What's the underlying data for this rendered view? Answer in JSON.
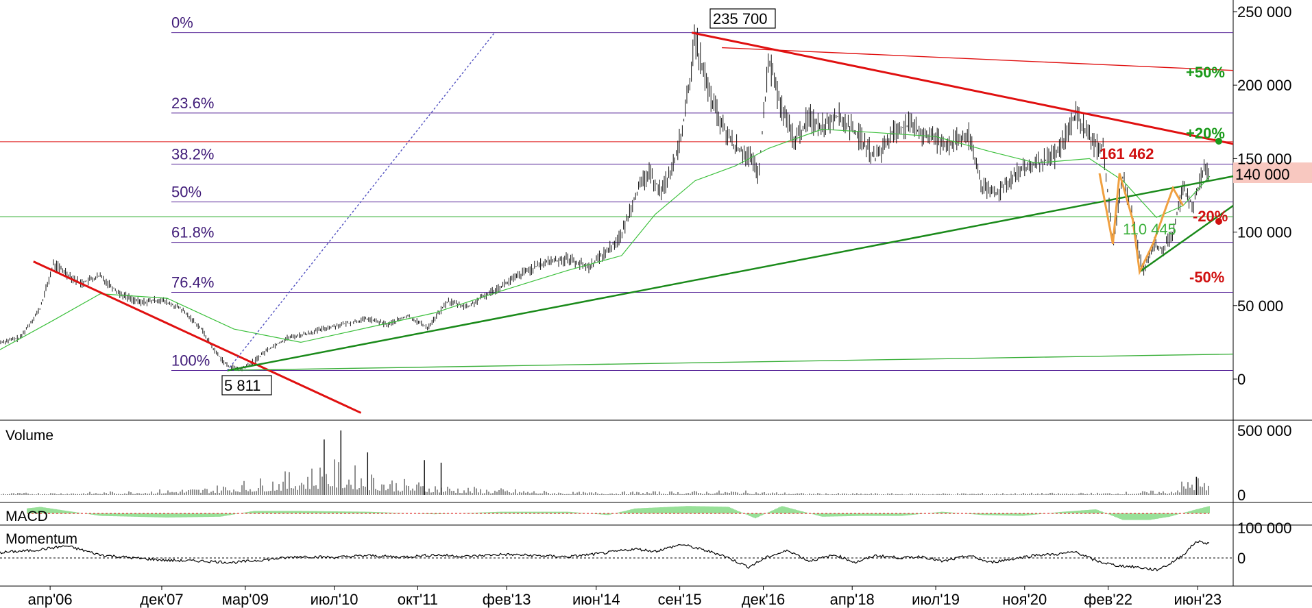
{
  "chart_data": [
    {
      "type": "line",
      "panel": "price",
      "y_ticks": [
        "250 000",
        "200 000",
        "150 000",
        "100 000",
        "50 000",
        "0"
      ],
      "y_tick_values": [
        250000,
        200000,
        150000,
        100000,
        50000,
        0
      ],
      "ylim": [
        -30000,
        255000
      ],
      "x_ticks": [
        "апр'06",
        "дек'07",
        "мар'09",
        "июл'10",
        "окт'11",
        "фев'13",
        "июн'14",
        "сен'15",
        "дек'16",
        "апр'18",
        "июл'19",
        "ноя'20",
        "фев'22",
        "июн'23"
      ],
      "x_tick_values": [
        2006.25,
        2007.92,
        2009.17,
        2010.5,
        2011.75,
        2013.08,
        2014.42,
        2015.67,
        2016.92,
        2018.25,
        2019.5,
        2020.83,
        2022.08,
        2023.42
      ],
      "xlim": [
        2005.5,
        2024.0
      ],
      "fib_levels": [
        {
          "label": "0%",
          "value": 235700
        },
        {
          "label": "23.6%",
          "value": 181000
        },
        {
          "label": "38.2%",
          "value": 146300
        },
        {
          "label": "50%",
          "value": 120500
        },
        {
          "label": "61.8%",
          "value": 93000
        },
        {
          "label": "76.4%",
          "value": 59000
        },
        {
          "label": "100%",
          "value": 5811
        }
      ],
      "horizontal_lines": [
        {
          "value": 161462,
          "color": "#e23030"
        },
        {
          "value": 110445,
          "color": "#3cb03c"
        }
      ],
      "annotations": {
        "high": "235 700",
        "low": "5 811",
        "level_161": "161 462",
        "level_110": "110 445",
        "current": "140 000",
        "plus50": "+50%",
        "plus20": "+20%",
        "minus20": "-20%",
        "minus50": "-50%"
      },
      "price_series": {
        "name": "",
        "x": [
          2005.5,
          2005.8,
          2006.1,
          2006.3,
          2006.5,
          2006.7,
          2007.0,
          2007.3,
          2007.6,
          2007.9,
          2008.2,
          2008.5,
          2008.7,
          2008.9,
          2009.1,
          2009.3,
          2009.5,
          2009.8,
          2010.1,
          2010.4,
          2010.7,
          2011.0,
          2011.3,
          2011.6,
          2011.9,
          2012.2,
          2012.5,
          2012.8,
          2013.1,
          2013.4,
          2013.7,
          2014.0,
          2014.3,
          2014.6,
          2014.8,
          2015.0,
          2015.2,
          2015.4,
          2015.6,
          2015.75,
          2015.9,
          2016.1,
          2016.3,
          2016.5,
          2016.7,
          2016.85,
          2017.0,
          2017.2,
          2017.4,
          2017.6,
          2017.8,
          2018.0,
          2018.3,
          2018.6,
          2018.9,
          2019.1,
          2019.4,
          2019.7,
          2020.0,
          2020.2,
          2020.4,
          2020.7,
          2021.0,
          2021.3,
          2021.6,
          2021.9,
          2022.0,
          2022.15,
          2022.3,
          2022.45,
          2022.6,
          2022.75,
          2022.9,
          2023.05,
          2023.2,
          2023.35,
          2023.5,
          2023.6
        ],
        "values": [
          25000,
          28000,
          48000,
          78000,
          72000,
          65000,
          70000,
          58000,
          52000,
          54000,
          48000,
          35000,
          20000,
          9000,
          6500,
          12000,
          20000,
          28000,
          31000,
          35000,
          38000,
          41000,
          37000,
          43000,
          35000,
          53000,
          49000,
          58000,
          66000,
          74000,
          80000,
          82000,
          76000,
          88000,
          98000,
          125000,
          140000,
          128000,
          148000,
          180000,
          232000,
          195000,
          172000,
          158000,
          152000,
          138000,
          218000,
          182000,
          162000,
          178000,
          172000,
          180000,
          168000,
          150000,
          170000,
          172000,
          165000,
          160000,
          165000,
          130000,
          126000,
          140000,
          146000,
          152000,
          180000,
          158000,
          160000,
          92000,
          138000,
          108000,
          73000,
          92000,
          88000,
          100000,
          130000,
          118000,
          142000,
          140000
        ]
      },
      "ma_series": {
        "name": "",
        "x": [
          2005.5,
          2006.3,
          2007.0,
          2008.0,
          2009.0,
          2010.0,
          2011.0,
          2012.0,
          2013.0,
          2014.0,
          2014.8,
          2015.3,
          2015.9,
          2016.5,
          2017.0,
          2017.8,
          2018.5,
          2019.5,
          2020.3,
          2021.0,
          2021.8,
          2022.3,
          2022.8,
          2023.2,
          2023.6
        ],
        "values": [
          20000,
          40000,
          58000,
          55000,
          34000,
          25000,
          35000,
          45000,
          60000,
          74000,
          84000,
          112000,
          135000,
          145000,
          157000,
          170000,
          168000,
          165000,
          155000,
          147000,
          150000,
          135000,
          110000,
          118000,
          138000
        ]
      },
      "trendlines": [
        {
          "color": "#e01010",
          "x": [
            2006.0,
            2010.9
          ],
          "y": [
            80000,
            -23000
          ]
        },
        {
          "color": "#e01010",
          "x": [
            2015.85,
            2023.95
          ],
          "y": [
            235700,
            160000
          ]
        },
        {
          "color": "#e01010",
          "x": [
            2016.3,
            2023.95
          ],
          "y": [
            225500,
            210000
          ]
        },
        {
          "color": "#1a8a1a",
          "x": [
            2008.9,
            2023.95
          ],
          "y": [
            5811,
            138000
          ]
        },
        {
          "color": "#1a8a1a",
          "x": [
            2022.55,
            2023.95
          ],
          "y": [
            73000,
            118000
          ]
        },
        {
          "color": "#3cb03c",
          "x": [
            2009.0,
            2023.95
          ],
          "y": [
            6000,
            17000
          ]
        },
        {
          "color": "#5050c0",
          "x": [
            2008.9,
            2012.9
          ],
          "y": [
            5811,
            235700
          ]
        }
      ],
      "orange_pattern": {
        "x": [
          2021.95,
          2022.15,
          2022.25,
          2022.45,
          2022.55,
          2022.75,
          2023.05,
          2023.2
        ],
        "y": [
          140000,
          92000,
          140000,
          108000,
          73000,
          92000,
          130000,
          118000
        ]
      }
    },
    {
      "type": "bar",
      "panel": "volume",
      "title": "Volume",
      "y_ticks": [
        "500 000",
        "0"
      ],
      "y_tick_values": [
        500000,
        0
      ],
      "ylim": [
        0,
        520000
      ],
      "profile": {
        "x": [
          2005.5,
          2007.0,
          2008.5,
          2009.5,
          2010.0,
          2010.5,
          2011.0,
          2011.5,
          2012.5,
          2014.0,
          2015.5,
          2016.5,
          2017.5,
          2019.0,
          2020.5,
          2022.0,
          2023.0,
          2023.35,
          2023.6
        ],
        "values": [
          12000,
          18000,
          45000,
          110000,
          160000,
          210000,
          150000,
          95000,
          50000,
          18000,
          22000,
          28000,
          12000,
          10000,
          12000,
          14000,
          30000,
          130000,
          70000
        ]
      },
      "peaks": [
        {
          "x": 2010.6,
          "value": 500000
        },
        {
          "x": 2010.35,
          "value": 430000
        },
        {
          "x": 2011.0,
          "value": 330000
        },
        {
          "x": 2011.85,
          "value": 270000
        },
        {
          "x": 2012.1,
          "value": 250000
        },
        {
          "x": 2023.4,
          "value": 140000
        }
      ]
    },
    {
      "type": "bar",
      "panel": "macd",
      "title": "MACD",
      "x": [
        2005.5,
        2006.1,
        2007.0,
        2008.0,
        2008.8,
        2009.3,
        2010.0,
        2011.0,
        2012.0,
        2013.0,
        2014.0,
        2014.6,
        2015.0,
        2015.8,
        2016.4,
        2016.8,
        2017.2,
        2017.8,
        2018.4,
        2019.0,
        2019.6,
        2020.2,
        2020.8,
        2021.4,
        2021.9,
        2022.3,
        2022.7,
        2023.0,
        2023.4,
        2023.6
      ],
      "values": [
        0.2,
        0.8,
        -0.3,
        -0.5,
        -0.4,
        0.3,
        0.3,
        0.2,
        -0.1,
        0.2,
        0.2,
        -0.2,
        0.6,
        0.9,
        0.8,
        -0.6,
        0.9,
        -0.4,
        -0.3,
        -0.3,
        0.2,
        -0.2,
        -0.3,
        0.2,
        0.5,
        -0.8,
        -0.8,
        -0.4,
        0.5,
        0.9
      ]
    },
    {
      "type": "line",
      "panel": "momentum",
      "title": "Momentum",
      "y_ticks": [
        "100 000",
        "0"
      ],
      "y_tick_values": [
        100000,
        0
      ],
      "ylim": [
        -45000,
        100000
      ],
      "x": [
        2005.5,
        2006.0,
        2006.5,
        2007.0,
        2007.5,
        2008.0,
        2008.5,
        2009.0,
        2009.5,
        2010.0,
        2010.5,
        2011.0,
        2011.5,
        2012.0,
        2012.5,
        2013.0,
        2013.5,
        2014.0,
        2014.5,
        2015.0,
        2015.3,
        2015.7,
        2016.0,
        2016.3,
        2016.7,
        2017.0,
        2017.3,
        2017.6,
        2018.0,
        2018.3,
        2018.6,
        2019.0,
        2019.3,
        2019.6,
        2020.0,
        2020.3,
        2020.6,
        2021.0,
        2021.3,
        2021.6,
        2021.9,
        2022.2,
        2022.5,
        2022.8,
        2023.0,
        2023.2,
        2023.4,
        2023.6
      ],
      "values": [
        18000,
        25000,
        40000,
        10000,
        0,
        -8000,
        -10000,
        -15000,
        -5000,
        5000,
        2000,
        8000,
        3000,
        10000,
        5000,
        12000,
        8000,
        4000,
        15000,
        30000,
        22000,
        45000,
        28000,
        10000,
        -30000,
        5000,
        25000,
        -10000,
        10000,
        -15000,
        8000,
        0,
        5000,
        -12000,
        8000,
        -15000,
        -5000,
        10000,
        12000,
        20000,
        -10000,
        -25000,
        -30000,
        -40000,
        -20000,
        10000,
        55000,
        48000
      ]
    }
  ]
}
